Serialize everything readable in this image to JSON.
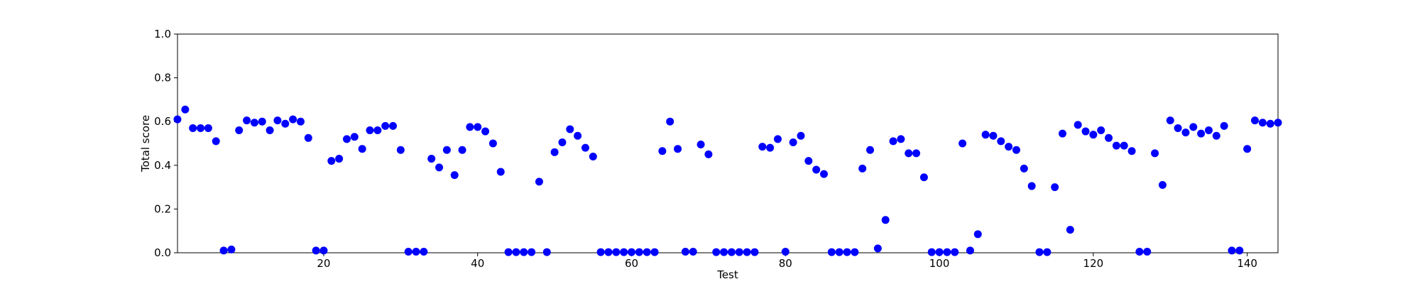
{
  "chart_data": {
    "type": "scatter",
    "x_label": "Test",
    "y_label": "Total score",
    "color": "#0000ff",
    "x": [
      1,
      2,
      3,
      4,
      5,
      6,
      7,
      8,
      9,
      10,
      11,
      12,
      13,
      14,
      15,
      16,
      17,
      18,
      19,
      20,
      21,
      22,
      23,
      24,
      25,
      26,
      27,
      28,
      29,
      30,
      31,
      32,
      33,
      34,
      35,
      36,
      37,
      38,
      39,
      40,
      41,
      42,
      43,
      44,
      45,
      46,
      47,
      48,
      49,
      50,
      51,
      52,
      53,
      54,
      55,
      56,
      57,
      58,
      59,
      60,
      61,
      62,
      63,
      64,
      65,
      66,
      67,
      68,
      69,
      70,
      71,
      72,
      73,
      74,
      75,
      76,
      77,
      78,
      79,
      80,
      81,
      82,
      83,
      84,
      85,
      86,
      87,
      88,
      89,
      90,
      91,
      92,
      93,
      94,
      95,
      96,
      97,
      98,
      99,
      100,
      101,
      102,
      103,
      104,
      105,
      106,
      107,
      108,
      109,
      110,
      111,
      112,
      113,
      114,
      115,
      116,
      117,
      118,
      119,
      120,
      121,
      122,
      123,
      124,
      125,
      126,
      127,
      128,
      129,
      130,
      131,
      132,
      133,
      134,
      135,
      136,
      137,
      138,
      139,
      140,
      141,
      142,
      143,
      144
    ],
    "values": [
      0.61,
      0.655,
      0.57,
      0.57,
      0.57,
      0.51,
      0.01,
      0.015,
      0.56,
      0.605,
      0.595,
      0.6,
      0.56,
      0.605,
      0.59,
      0.61,
      0.6,
      0.525,
      0.01,
      0.01,
      0.42,
      0.43,
      0.52,
      0.53,
      0.475,
      0.56,
      0.56,
      0.58,
      0.58,
      0.47,
      0.005,
      0.005,
      0.005,
      0.43,
      0.39,
      0.47,
      0.355,
      0.47,
      0.575,
      0.575,
      0.555,
      0.5,
      0.37,
      0.003,
      0.003,
      0.003,
      0.003,
      0.325,
      0.003,
      0.46,
      0.505,
      0.565,
      0.535,
      0.48,
      0.44,
      0.003,
      0.003,
      0.003,
      0.003,
      0.003,
      0.003,
      0.003,
      0.003,
      0.465,
      0.6,
      0.475,
      0.005,
      0.005,
      0.495,
      0.45,
      0.003,
      0.003,
      0.003,
      0.003,
      0.003,
      0.003,
      0.485,
      0.48,
      0.52,
      0.005,
      0.505,
      0.535,
      0.42,
      0.38,
      0.36,
      0.003,
      0.003,
      0.003,
      0.003,
      0.385,
      0.47,
      0.02,
      0.15,
      0.51,
      0.52,
      0.455,
      0.455,
      0.345,
      0.003,
      0.003,
      0.003,
      0.003,
      0.5,
      0.01,
      0.085,
      0.54,
      0.535,
      0.51,
      0.485,
      0.47,
      0.385,
      0.305,
      0.003,
      0.003,
      0.3,
      0.545,
      0.105,
      0.585,
      0.555,
      0.54,
      0.56,
      0.525,
      0.49,
      0.49,
      0.465,
      0.005,
      0.005,
      0.455,
      0.31,
      0.605,
      0.57,
      0.55,
      0.575,
      0.545,
      0.56,
      0.535,
      0.58,
      0.01,
      0.01,
      0.475,
      0.605,
      0.595,
      0.59,
      0.595
    ],
    "xlim": [
      1,
      144
    ],
    "ylim": [
      0,
      1
    ],
    "xticks": [
      20,
      40,
      60,
      80,
      100,
      120,
      140
    ],
    "yticks": [
      {
        "value": 0,
        "label": "0.0"
      },
      0.2,
      0.4,
      0.6,
      0.8,
      {
        "value": 1,
        "label": "1.0"
      }
    ]
  }
}
